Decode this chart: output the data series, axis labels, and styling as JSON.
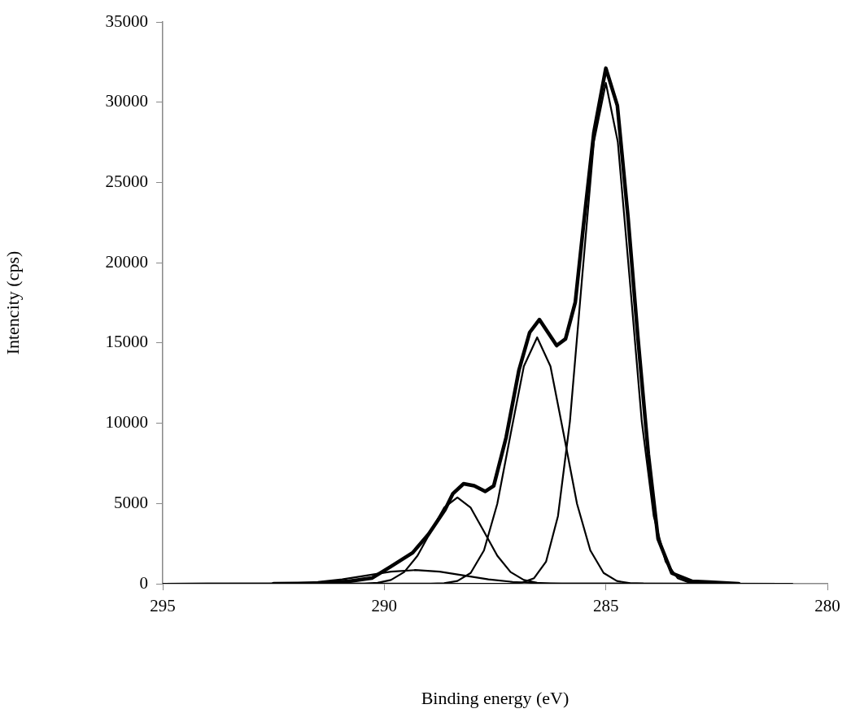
{
  "chart_data": {
    "type": "line",
    "xlabel": "Binding energy (eV)",
    "ylabel": "Intencity (cps)",
    "xlim": [
      295,
      280
    ],
    "xticks": [
      295,
      290,
      285,
      280
    ],
    "ylim": [
      0,
      35000
    ],
    "yticks": [
      0,
      5000,
      10000,
      15000,
      20000,
      25000,
      30000,
      35000
    ],
    "grid": false,
    "legend": false,
    "marker": "none",
    "line_style": "solid",
    "series": [
      {
        "color": "#000000",
        "x": [
          292.5,
          291.5,
          290.8,
          290.28,
          289.86,
          289.36,
          289.0,
          288.63,
          288.45,
          288.21,
          287.97,
          287.72,
          287.53,
          287.25,
          286.96,
          286.72,
          286.5,
          286.11,
          285.91,
          285.69,
          285.51,
          285.27,
          285.0,
          284.74,
          284.5,
          284.28,
          284.04,
          283.82,
          283.51,
          283.05,
          282.66,
          282.0
        ],
        "values": [
          0,
          30,
          150,
          350,
          1060,
          1930,
          3090,
          4610,
          5620,
          6230,
          6100,
          5750,
          6100,
          9120,
          13320,
          15650,
          16460,
          14840,
          15250,
          17530,
          22190,
          28120,
          32120,
          29790,
          22850,
          15450,
          8050,
          2790,
          660,
          150,
          100,
          0
        ]
      },
      {
        "color": "#000000",
        "x": [
          295,
          287.5,
          287.16,
          286.89,
          286.62,
          286.35,
          286.08,
          285.81,
          285.54,
          285.27,
          285.0,
          284.73,
          284.46,
          284.19,
          283.92,
          283.65,
          283.38,
          283.11,
          282.84,
          280.8
        ],
        "values": [
          0,
          0,
          9,
          69,
          346,
          1370,
          4220,
          10130,
          18920,
          27530,
          31200,
          27530,
          18920,
          10130,
          4220,
          1370,
          346,
          69,
          9,
          0
        ]
      },
      {
        "color": "#000000",
        "x": [
          295,
          288.95,
          288.65,
          288.35,
          288.05,
          287.75,
          287.45,
          287.15,
          286.85,
          286.55,
          286.25,
          285.95,
          285.65,
          285.35,
          285.05,
          284.75,
          284.45,
          284.15,
          280.8
        ],
        "values": [
          0,
          5,
          34,
          170,
          674,
          2080,
          4980,
          9310,
          13550,
          15350,
          13550,
          9310,
          4980,
          2080,
          674,
          170,
          34,
          5,
          0
        ]
      },
      {
        "color": "#000000",
        "x": [
          295,
          290.45,
          290.15,
          289.85,
          289.55,
          289.25,
          288.95,
          288.65,
          288.35,
          288.05,
          287.75,
          287.45,
          287.15,
          286.85,
          286.55,
          286.25,
          280.8
        ],
        "values": [
          0,
          12,
          59,
          236,
          727,
          1744,
          3257,
          4740,
          5370,
          4740,
          3257,
          1744,
          727,
          236,
          59,
          12,
          0
        ]
      },
      {
        "color": "#000000",
        "x": [
          295,
          292.6,
          292.05,
          291.5,
          290.95,
          290.4,
          289.85,
          289.3,
          288.75,
          288.2,
          287.65,
          287.1,
          286.55,
          286.0,
          280.8
        ],
        "values": [
          0,
          9,
          37,
          115,
          276,
          516,
          750,
          850,
          750,
          516,
          276,
          115,
          37,
          9,
          0
        ]
      }
    ]
  }
}
